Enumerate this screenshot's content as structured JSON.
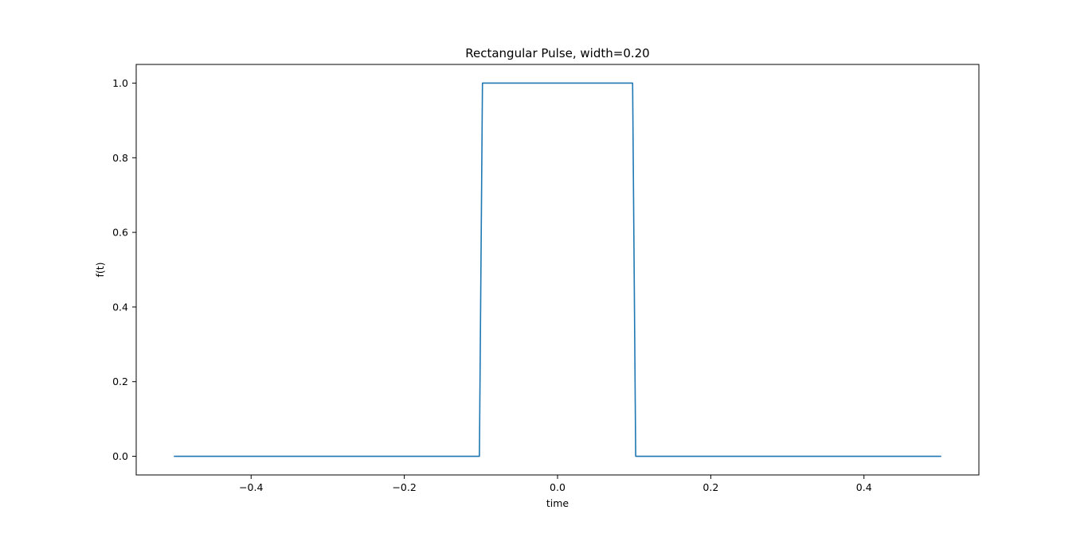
{
  "chart_data": {
    "type": "line",
    "title": "Rectangular Pulse, width=0.20",
    "xlabel": "time",
    "ylabel": "f(t)",
    "xlim": [
      -0.55,
      0.55
    ],
    "ylim": [
      -0.05,
      1.05
    ],
    "grid": false,
    "legend": "none",
    "xticks": [
      -0.4,
      -0.2,
      0.0,
      0.2,
      0.4
    ],
    "xtick_labels": [
      "−0.4",
      "−0.2",
      "0.0",
      "0.2",
      "0.4"
    ],
    "yticks": [
      0.0,
      0.2,
      0.4,
      0.6,
      0.8,
      1.0
    ],
    "ytick_labels": [
      "0.0",
      "0.2",
      "0.4",
      "0.6",
      "0.8",
      "1.0"
    ],
    "series": [
      {
        "color": "#1f77b4",
        "x": [
          -0.5,
          -0.102,
          -0.098,
          0.098,
          0.102,
          0.5
        ],
        "y": [
          0,
          0,
          1,
          1,
          0,
          0
        ]
      }
    ]
  }
}
